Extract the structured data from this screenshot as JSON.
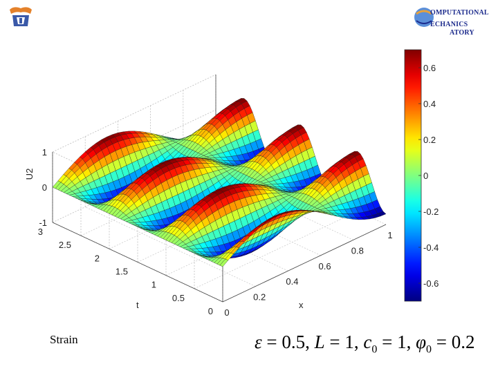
{
  "logo_right": {
    "line1": "OMPUTATIONAL",
    "line2": "ECHANICS",
    "line3": "ATORY"
  },
  "caption": "Strain",
  "formula": {
    "eps_sym": "ε",
    "eps_val": " = 0.5, ",
    "L_sym": "L",
    "L_val": " = 1, ",
    "c_sym": "c",
    "c_sub": "0",
    "c_val": " = 1, ",
    "phi_sym": "φ",
    "phi_sub": "0",
    "phi_val": " = 0.2"
  },
  "chart_data": {
    "type": "surface",
    "title": "",
    "xlabel": "x",
    "ylabel": "t",
    "zlabel": "U2",
    "xlim": [
      0,
      1
    ],
    "ylim": [
      0,
      3
    ],
    "zlim": [
      -1,
      1
    ],
    "x_ticks": [
      "0",
      "0.2",
      "0.4",
      "0.6",
      "0.8",
      "1"
    ],
    "t_ticks": [
      "0",
      "0.5",
      "1",
      "1.5",
      "2",
      "2.5",
      "3"
    ],
    "z_ticks": [
      "-1",
      "0",
      "1"
    ],
    "colormap": "jet",
    "colorbar": {
      "range": [
        -0.7,
        0.7
      ],
      "ticks": [
        "0.6",
        "0.4",
        "0.2",
        "0",
        "-0.2",
        "-0.4",
        "-0.6"
      ]
    },
    "series": [
      {
        "surface": "U2(x,t) ≈ 0.7·sin(1.5πx)·cos(2πt)"
      }
    ],
    "grid": true
  }
}
